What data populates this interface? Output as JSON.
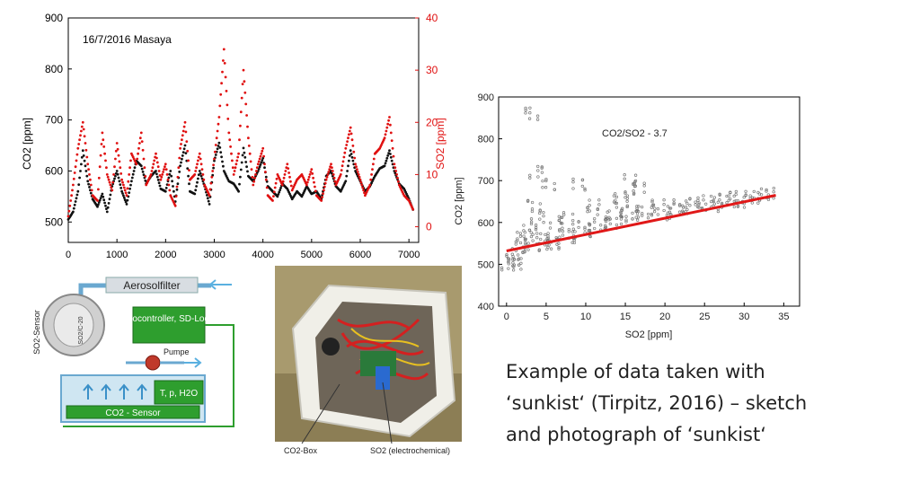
{
  "colors": {
    "co2": "#111111",
    "so2": "#e01010",
    "fit": "#e01818",
    "scatter": "#777777",
    "box_green": "#2e9e2e",
    "pipe_blue": "#5ab0e0"
  },
  "chart_data": [
    {
      "type": "scatter",
      "title": "16/7/2016 Masaya",
      "xlabel": "",
      "ylabel_left": "CO2 [ppm]",
      "ylabel_right": "SO2 [ppm]",
      "xlim": [
        0,
        7200
      ],
      "ylim_left": [
        460,
        900
      ],
      "ylim_right": [
        -3,
        40
      ],
      "xticks": [
        "0",
        "1000",
        "2000",
        "3000",
        "4000",
        "5000",
        "6000",
        "7000"
      ],
      "yticks_left": [
        "500",
        "600",
        "700",
        "800",
        "900"
      ],
      "yticks_right": [
        "0",
        "10",
        "20",
        "30",
        "40"
      ],
      "series": [
        {
          "name": "CO2",
          "axis": "left",
          "x": [
            0,
            100,
            200,
            300,
            400,
            500,
            600,
            700,
            800,
            900,
            1000,
            1100,
            1200,
            1300,
            1400,
            1500,
            1600,
            1700,
            1800,
            1900,
            2000,
            2100,
            2200,
            2300,
            2400,
            2500,
            2600,
            2700,
            2800,
            2900,
            3000,
            3100,
            3200,
            3300,
            3400,
            3500,
            3600,
            3700,
            3800,
            3900,
            4000,
            4100,
            4200,
            4300,
            4400,
            4500,
            4600,
            4700,
            4800,
            4900,
            5000,
            5100,
            5200,
            5300,
            5400,
            5500,
            5600,
            5700,
            5800,
            5900,
            6000,
            6100,
            6200,
            6300,
            6400,
            6500,
            6600,
            6700,
            6800,
            6900,
            7000,
            7100
          ],
          "y": [
            505,
            520,
            560,
            640,
            580,
            545,
            530,
            555,
            520,
            570,
            600,
            560,
            535,
            580,
            620,
            610,
            575,
            590,
            600,
            565,
            560,
            600,
            540,
            610,
            650,
            560,
            555,
            600,
            570,
            535,
            620,
            655,
            600,
            580,
            575,
            560,
            645,
            590,
            580,
            600,
            625,
            570,
            560,
            550,
            575,
            565,
            545,
            560,
            550,
            570,
            555,
            560,
            545,
            590,
            600,
            570,
            560,
            580,
            640,
            600,
            580,
            560,
            570,
            590,
            605,
            610,
            640,
            600,
            575,
            565,
            545,
            520
          ]
        },
        {
          "name": "SO2",
          "axis": "right",
          "x": [
            0,
            100,
            200,
            300,
            400,
            500,
            600,
            700,
            800,
            900,
            1000,
            1100,
            1200,
            1300,
            1400,
            1500,
            1600,
            1700,
            1800,
            1900,
            2000,
            2100,
            2200,
            2300,
            2400,
            2500,
            2600,
            2700,
            2800,
            2900,
            3000,
            3100,
            3200,
            3300,
            3400,
            3500,
            3600,
            3700,
            3800,
            3900,
            4000,
            4100,
            4200,
            4300,
            4400,
            4500,
            4600,
            4700,
            4800,
            4900,
            5000,
            5100,
            5200,
            5300,
            5400,
            5500,
            5600,
            5700,
            5800,
            5900,
            6000,
            6100,
            6200,
            6300,
            6400,
            6500,
            6600,
            6700,
            6800,
            6900,
            7000,
            7100
          ],
          "y": [
            2,
            8,
            15,
            20,
            12,
            6,
            5,
            18,
            10,
            7,
            16,
            9,
            6,
            14,
            12,
            18,
            8,
            10,
            14,
            9,
            12,
            6,
            4,
            15,
            20,
            9,
            10,
            14,
            8,
            6,
            13,
            21,
            34,
            18,
            10,
            14,
            30,
            17,
            8,
            12,
            15,
            6,
            5,
            10,
            8,
            12,
            7,
            9,
            10,
            8,
            11,
            6,
            5,
            9,
            12,
            8,
            10,
            15,
            19,
            12,
            9,
            6,
            8,
            14,
            15,
            17,
            21,
            12,
            8,
            6,
            5,
            3
          ]
        }
      ]
    },
    {
      "type": "scatter",
      "title": "",
      "annotation": "CO2/SO2 - 3.7",
      "xlabel": "SO2 [ppm]",
      "ylabel": "CO2 [ppm]",
      "xlim": [
        -1,
        37
      ],
      "ylim": [
        400,
        900
      ],
      "xticks": [
        "0",
        "5",
        "10",
        "15",
        "20",
        "25",
        "30",
        "35"
      ],
      "yticks": [
        "400",
        "500",
        "600",
        "700",
        "800",
        "900"
      ],
      "fit_line": {
        "x": [
          0,
          34
        ],
        "y": [
          532,
          665
        ]
      },
      "series": [
        {
          "name": "",
          "x": [
            0.2,
            0.8,
            1.5,
            2,
            2.5,
            3,
            3.4,
            3.8,
            4.5,
            5,
            5.5,
            6,
            7,
            8,
            9,
            10,
            11,
            12,
            13,
            14,
            15,
            16,
            17,
            18,
            19,
            20,
            21,
            22,
            23,
            24,
            25,
            26,
            27,
            28,
            29,
            30,
            31,
            32,
            33,
            1,
            2.2,
            3.1,
            4,
            5.2,
            6.4,
            7.5,
            9.3,
            10.8,
            12.4,
            14.1,
            15.8,
            16.5,
            14.8
          ],
          "y": [
            500,
            510,
            525,
            540,
            560,
            580,
            640,
            720,
            560,
            545,
            560,
            550,
            570,
            565,
            575,
            590,
            580,
            595,
            600,
            610,
            620,
            615,
            625,
            630,
            640,
            620,
            630,
            640,
            635,
            645,
            650,
            640,
            655,
            650,
            660,
            650,
            660,
            665,
            668,
            500,
            570,
            860,
            610,
            690,
            600,
            610,
            690,
            640,
            620,
            660,
            700,
            680,
            650
          ]
        }
      ]
    }
  ],
  "diagram": {
    "aerosolfilter": "Aerosolfilter",
    "sensor_label": "SO2-Sensor",
    "sensor_face": "SO2/C-20",
    "microcontroller": "Microcontroller, SD-Logger",
    "pumpe": "Pumpe",
    "tph": "T, p, H2O",
    "co2_sensor": "CO2 - Sensor"
  },
  "photo": {
    "label_co2box": "CO2-Box",
    "label_so2": "SO2 (electrochemical)"
  },
  "caption": {
    "line1": "Example of  data taken with",
    "line2": "‘sunkist‘ (Tirpitz, 2016) – sketch",
    "line3": "and photograph of ‘sunkist‘"
  }
}
